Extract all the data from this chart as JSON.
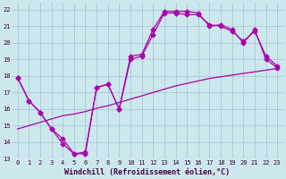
{
  "xlabel": "Windchill (Refroidissement éolien,°C)",
  "bg_color": "#cce8ec",
  "grid_color": "#99bbcc",
  "line_color": "#aa00aa",
  "xlim": [
    -0.5,
    23.5
  ],
  "ylim": [
    13,
    22.4
  ],
  "xticks": [
    0,
    1,
    2,
    3,
    4,
    5,
    6,
    7,
    8,
    9,
    10,
    11,
    12,
    13,
    14,
    15,
    16,
    17,
    18,
    19,
    20,
    21,
    22,
    23
  ],
  "yticks": [
    13,
    14,
    15,
    16,
    17,
    18,
    19,
    20,
    21,
    22
  ],
  "series1_x": [
    0,
    1,
    2,
    3,
    4,
    5,
    6,
    7,
    8,
    9,
    10,
    11,
    12,
    13,
    14,
    15,
    16,
    17,
    18,
    19,
    20,
    21,
    22,
    23
  ],
  "series1_y": [
    17.9,
    16.5,
    15.8,
    14.8,
    13.9,
    13.3,
    13.3,
    17.3,
    17.5,
    16.0,
    19.2,
    19.3,
    20.8,
    21.9,
    21.9,
    21.9,
    21.8,
    21.0,
    21.1,
    20.8,
    20.0,
    20.8,
    19.0,
    18.5
  ],
  "series2_x": [
    0,
    1,
    2,
    3,
    4,
    5,
    6,
    7,
    8,
    9,
    10,
    11,
    12,
    13,
    14,
    15,
    16,
    17,
    18,
    19,
    20,
    21,
    22,
    23
  ],
  "series2_y": [
    14.8,
    15.0,
    15.2,
    15.4,
    15.6,
    15.7,
    15.85,
    16.05,
    16.2,
    16.4,
    16.6,
    16.8,
    17.0,
    17.2,
    17.4,
    17.55,
    17.7,
    17.85,
    17.95,
    18.05,
    18.15,
    18.25,
    18.35,
    18.45
  ],
  "series3_x": [
    0,
    1,
    2,
    3,
    4,
    5,
    6,
    7,
    8,
    9,
    10,
    11,
    12,
    13,
    14,
    15,
    16,
    17,
    18,
    19,
    20,
    21,
    22,
    23
  ],
  "series3_y": [
    17.9,
    16.5,
    15.8,
    14.8,
    14.2,
    13.3,
    13.4,
    17.3,
    17.5,
    16.0,
    19.0,
    19.2,
    20.5,
    21.8,
    21.8,
    21.7,
    21.7,
    21.1,
    21.0,
    20.7,
    20.1,
    20.7,
    19.2,
    18.6
  ],
  "marker_size": 2.5,
  "linewidth": 0.9,
  "tick_fontsize": 5.0,
  "label_fontsize": 6.0
}
